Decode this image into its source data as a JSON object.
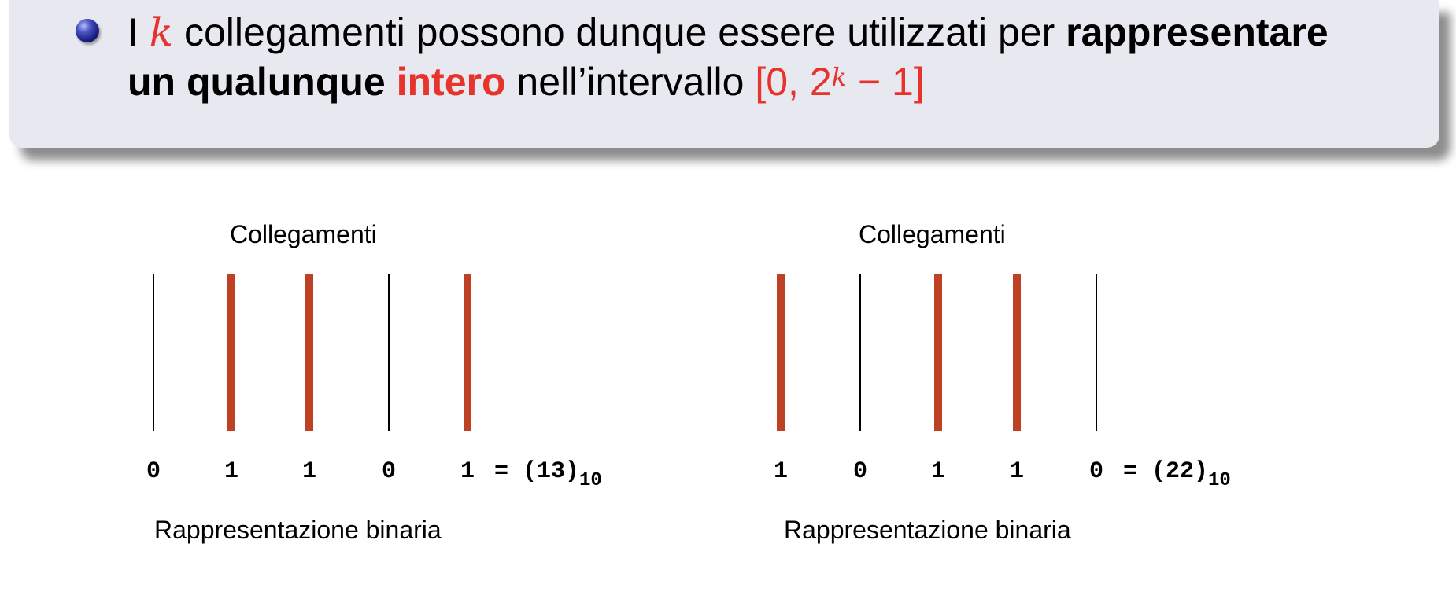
{
  "statement": {
    "l1_pre": "I ",
    "l1_k": "k",
    "l1_mid": " collegamenti possono dunque essere utilizzati per ",
    "l1_bold": "rappresentare",
    "l2_bold": "un qualunque",
    "l2_red_bold": " intero",
    "l2_mid": " nell’intervallo ",
    "interval_open": "[0, 2",
    "interval_exp": "k",
    "interval_close": " − 1]"
  },
  "examples": [
    {
      "top_label": "Collegamenti",
      "bits": [
        "0",
        "1",
        "1",
        "0",
        "1"
      ],
      "eq": "= (13)",
      "base": "10",
      "bottom_label": "Rappresentazione binaria"
    },
    {
      "top_label": "Collegamenti",
      "bits": [
        "1",
        "0",
        "1",
        "1",
        "0"
      ],
      "eq": "= (22)",
      "base": "10",
      "bottom_label": "Rappresentazione binaria"
    }
  ],
  "colors": {
    "active_wire": "#bf4123",
    "inactive_wire": "#000000",
    "accent_red": "#e8332d",
    "block_bg": "#e8e8f0"
  },
  "icons": {
    "bullet": "ball-bullet-icon"
  }
}
